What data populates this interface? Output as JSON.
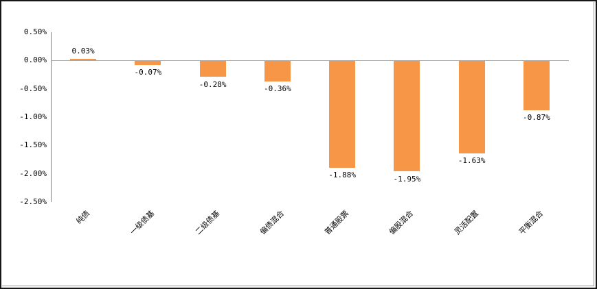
{
  "chart_data": {
    "type": "bar",
    "title": "",
    "xlabel": "",
    "ylabel": "",
    "categories": [
      "纯债",
      "一级债基",
      "二级债基",
      "偏债混合",
      "普通股票",
      "偏股混合",
      "灵活配置",
      "平衡混合"
    ],
    "values": [
      0.03,
      -0.07,
      -0.28,
      -0.36,
      -1.88,
      -1.95,
      -1.63,
      -0.87
    ],
    "data_labels": [
      "0.03%",
      "-0.07%",
      "-0.28%",
      "-0.36%",
      "-1.88%",
      "-1.95%",
      "-1.63%",
      "-0.87%"
    ],
    "y_ticks": [
      "0.50%",
      "0.00%",
      "-0.50%",
      "-1.00%",
      "-1.50%",
      "-2.00%",
      "-2.50%"
    ],
    "y_tick_values": [
      0.5,
      0.0,
      -0.5,
      -1.0,
      -1.5,
      -2.0,
      -2.5
    ],
    "ylim": [
      -2.5,
      0.5
    ],
    "bar_color": "#F79646",
    "axis_line_color": "#7f7f7f",
    "zero_line_color": "#a6a6a6",
    "gridlines": "none",
    "legend": "none",
    "category_label_rotation_deg": 45
  }
}
